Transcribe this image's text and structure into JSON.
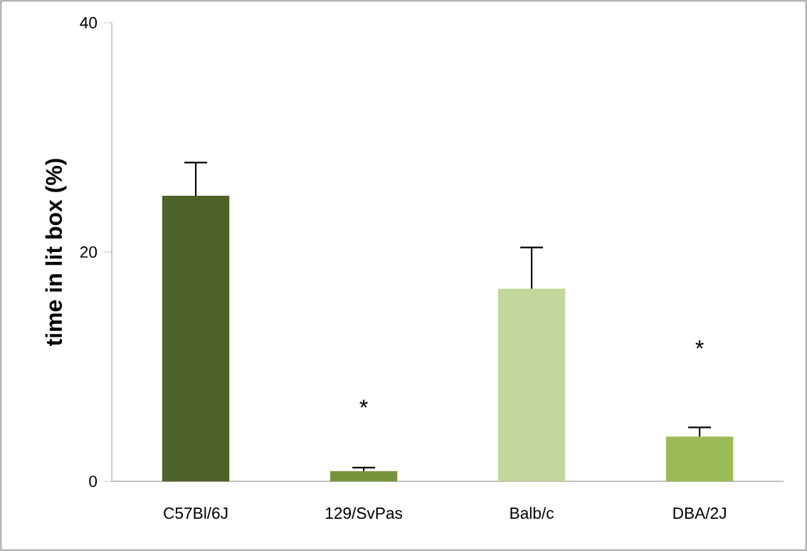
{
  "chart_data": {
    "type": "bar",
    "ylabel": "time in lit box (%)",
    "categories": [
      "C57Bl/6J",
      "129/SvPas",
      "Balb/c",
      "DBA/2J"
    ],
    "values": [
      24.9,
      0.9,
      16.8,
      3.9
    ],
    "colors": [
      "#4f6228",
      "#77933c",
      "#c3d69b",
      "#9bbb59"
    ],
    "errors": [
      [
        24.9,
        27.8
      ],
      [
        0.9,
        1.2
      ],
      [
        16.8,
        20.4
      ],
      [
        3.9,
        4.7
      ]
    ],
    "ylim": [
      0,
      40
    ],
    "yticks": [
      0,
      20,
      40
    ],
    "annotations": [
      "*",
      "*"
    ]
  }
}
